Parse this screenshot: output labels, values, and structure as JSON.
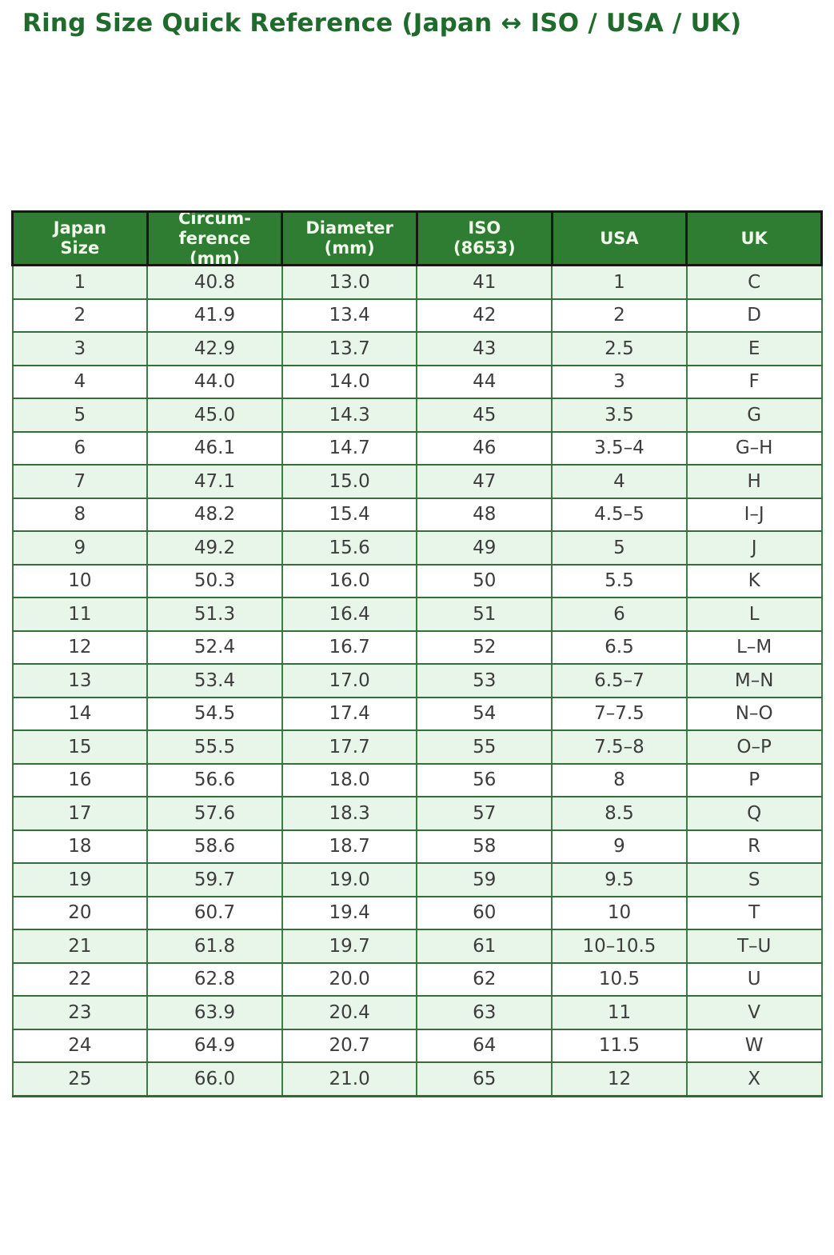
{
  "page": {
    "title": "Ring Size Quick Reference (Japan ↔ ISO / USA / UK)"
  },
  "colors": {
    "title_text": "#1f6b2c",
    "header_bg": "#2e7d32",
    "header_text": "#f1f8ec",
    "header_border": "#171717",
    "row_alt_bg": "#e8f5e9",
    "row_bg": "#ffffff",
    "body_border": "#3e7c45",
    "body_text": "#3d3d3d"
  },
  "table": {
    "headers": [
      "Japan\nSize",
      "Circum-\nference\n(mm)",
      "Diameter\n(mm)",
      "ISO\n(8653)",
      "USA",
      "UK"
    ],
    "rows": [
      [
        "1",
        "40.8",
        "13.0",
        "41",
        "1",
        "C"
      ],
      [
        "2",
        "41.9",
        "13.4",
        "42",
        "2",
        "D"
      ],
      [
        "3",
        "42.9",
        "13.7",
        "43",
        "2.5",
        "E"
      ],
      [
        "4",
        "44.0",
        "14.0",
        "44",
        "3",
        "F"
      ],
      [
        "5",
        "45.0",
        "14.3",
        "45",
        "3.5",
        "G"
      ],
      [
        "6",
        "46.1",
        "14.7",
        "46",
        "3.5–4",
        "G–H"
      ],
      [
        "7",
        "47.1",
        "15.0",
        "47",
        "4",
        "H"
      ],
      [
        "8",
        "48.2",
        "15.4",
        "48",
        "4.5–5",
        "I–J"
      ],
      [
        "9",
        "49.2",
        "15.6",
        "49",
        "5",
        "J"
      ],
      [
        "10",
        "50.3",
        "16.0",
        "50",
        "5.5",
        "K"
      ],
      [
        "11",
        "51.3",
        "16.4",
        "51",
        "6",
        "L"
      ],
      [
        "12",
        "52.4",
        "16.7",
        "52",
        "6.5",
        "L–M"
      ],
      [
        "13",
        "53.4",
        "17.0",
        "53",
        "6.5–7",
        "M–N"
      ],
      [
        "14",
        "54.5",
        "17.4",
        "54",
        "7–7.5",
        "N–O"
      ],
      [
        "15",
        "55.5",
        "17.7",
        "55",
        "7.5–8",
        "O–P"
      ],
      [
        "16",
        "56.6",
        "18.0",
        "56",
        "8",
        "P"
      ],
      [
        "17",
        "57.6",
        "18.3",
        "57",
        "8.5",
        "Q"
      ],
      [
        "18",
        "58.6",
        "18.7",
        "58",
        "9",
        "R"
      ],
      [
        "19",
        "59.7",
        "19.0",
        "59",
        "9.5",
        "S"
      ],
      [
        "20",
        "60.7",
        "19.4",
        "60",
        "10",
        "T"
      ],
      [
        "21",
        "61.8",
        "19.7",
        "61",
        "10–10.5",
        "T–U"
      ],
      [
        "22",
        "62.8",
        "20.0",
        "62",
        "10.5",
        "U"
      ],
      [
        "23",
        "63.9",
        "20.4",
        "63",
        "11",
        "V"
      ],
      [
        "24",
        "64.9",
        "20.7",
        "64",
        "11.5",
        "W"
      ],
      [
        "25",
        "66.0",
        "21.0",
        "65",
        "12",
        "X"
      ]
    ]
  }
}
